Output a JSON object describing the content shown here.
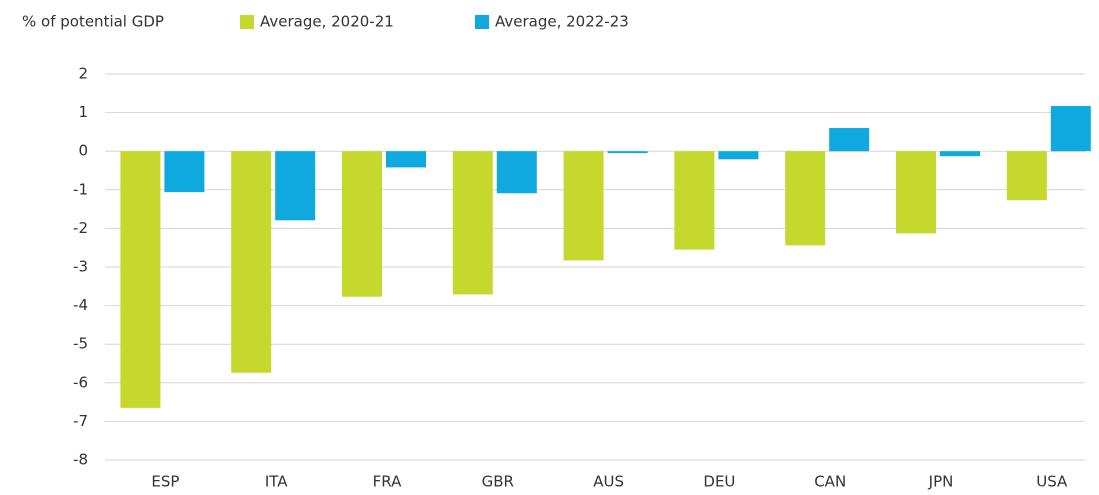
{
  "chart_data": {
    "type": "bar",
    "y_label": "% of potential GDP",
    "categories": [
      "ESP",
      "ITA",
      "FRA",
      "GBR",
      "AUS",
      "DEU",
      "CAN",
      "JPN",
      "USA"
    ],
    "series": [
      {
        "name": "Average, 2020-21",
        "color": "#c5d82e",
        "values": [
          -6.65,
          -5.74,
          -3.77,
          -3.71,
          -2.83,
          -2.55,
          -2.44,
          -2.13,
          -1.27
        ]
      },
      {
        "name": "Average, 2022-23",
        "color": "#0fa9df",
        "values": [
          -1.06,
          -1.79,
          -0.42,
          -1.09,
          -0.05,
          -0.21,
          0.6,
          -0.13,
          1.17
        ]
      }
    ],
    "ylim": [
      -8,
      2
    ],
    "yticks": [
      2,
      1,
      0,
      -1,
      -2,
      -3,
      -4,
      -5,
      -6,
      -7,
      -8
    ],
    "grid": true,
    "legend": "top"
  }
}
